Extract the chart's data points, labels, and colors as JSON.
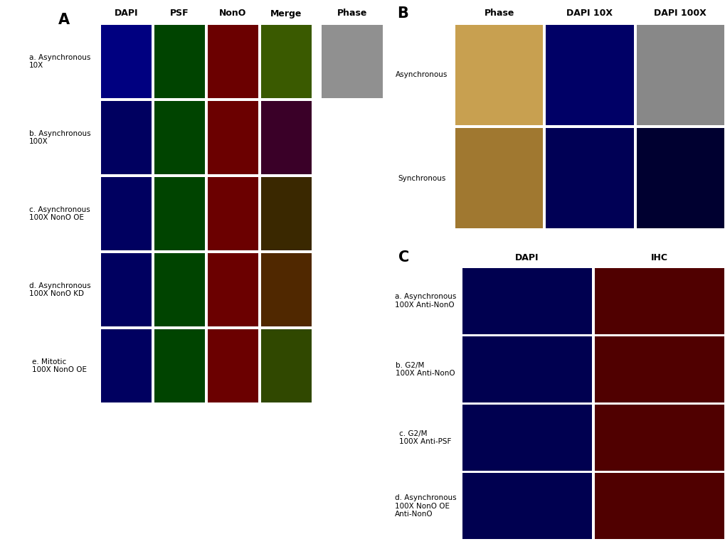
{
  "background_color": "#ffffff",
  "panel_A": {
    "label": "A",
    "col_headers": [
      "DAPI",
      "PSF",
      "NonO",
      "Merge",
      "Phase"
    ],
    "row_labels": [
      "a. Asynchronous\n10X",
      "b. Asynchronous\n100X",
      "c. Asynchronous\n100X NonO OE",
      "d. Asynchronous\n100X NonO KD",
      "e. Mitotic\n100X NonO OE"
    ],
    "row_colors": [
      [
        "#000080",
        "#004400",
        "#6B0000",
        "#3A5A00",
        "#909090"
      ],
      [
        "#000060",
        "#004400",
        "#6B0000",
        "#3A0028",
        "#000000"
      ],
      [
        "#000060",
        "#004400",
        "#6B0000",
        "#3A2800",
        "#000000"
      ],
      [
        "#000060",
        "#004400",
        "#6B0000",
        "#502800",
        "#000000"
      ],
      [
        "#000060",
        "#004400",
        "#6B0000",
        "#304800",
        "#000000"
      ]
    ]
  },
  "panel_B": {
    "label": "B",
    "col_headers": [
      "Phase",
      "DAPI 10X",
      "DAPI 100X"
    ],
    "row_labels": [
      "Asynchronous",
      "Synchronous"
    ],
    "row_colors": [
      [
        "#c8a050",
        "#000066",
        "#888888"
      ],
      [
        "#a07830",
        "#000055",
        "#000030"
      ]
    ]
  },
  "panel_C": {
    "label": "C",
    "col_headers": [
      "DAPI",
      "IHC"
    ],
    "row_labels": [
      "a. Asynchronous\n100X Anti-NonO",
      "b. G2/M\n100X Anti-NonO",
      "c. G2/M\n100X Anti-PSF",
      "d. Asynchronous\n100X NonO OE\nAnti-NonO"
    ],
    "row_colors": [
      [
        "#000050",
        "#500000"
      ],
      [
        "#000050",
        "#500000"
      ],
      [
        "#000050",
        "#500000"
      ],
      [
        "#000050",
        "#500000"
      ]
    ]
  },
  "font_size_labels": 7.5,
  "font_size_headers": 9,
  "font_size_panel_labels": 15
}
